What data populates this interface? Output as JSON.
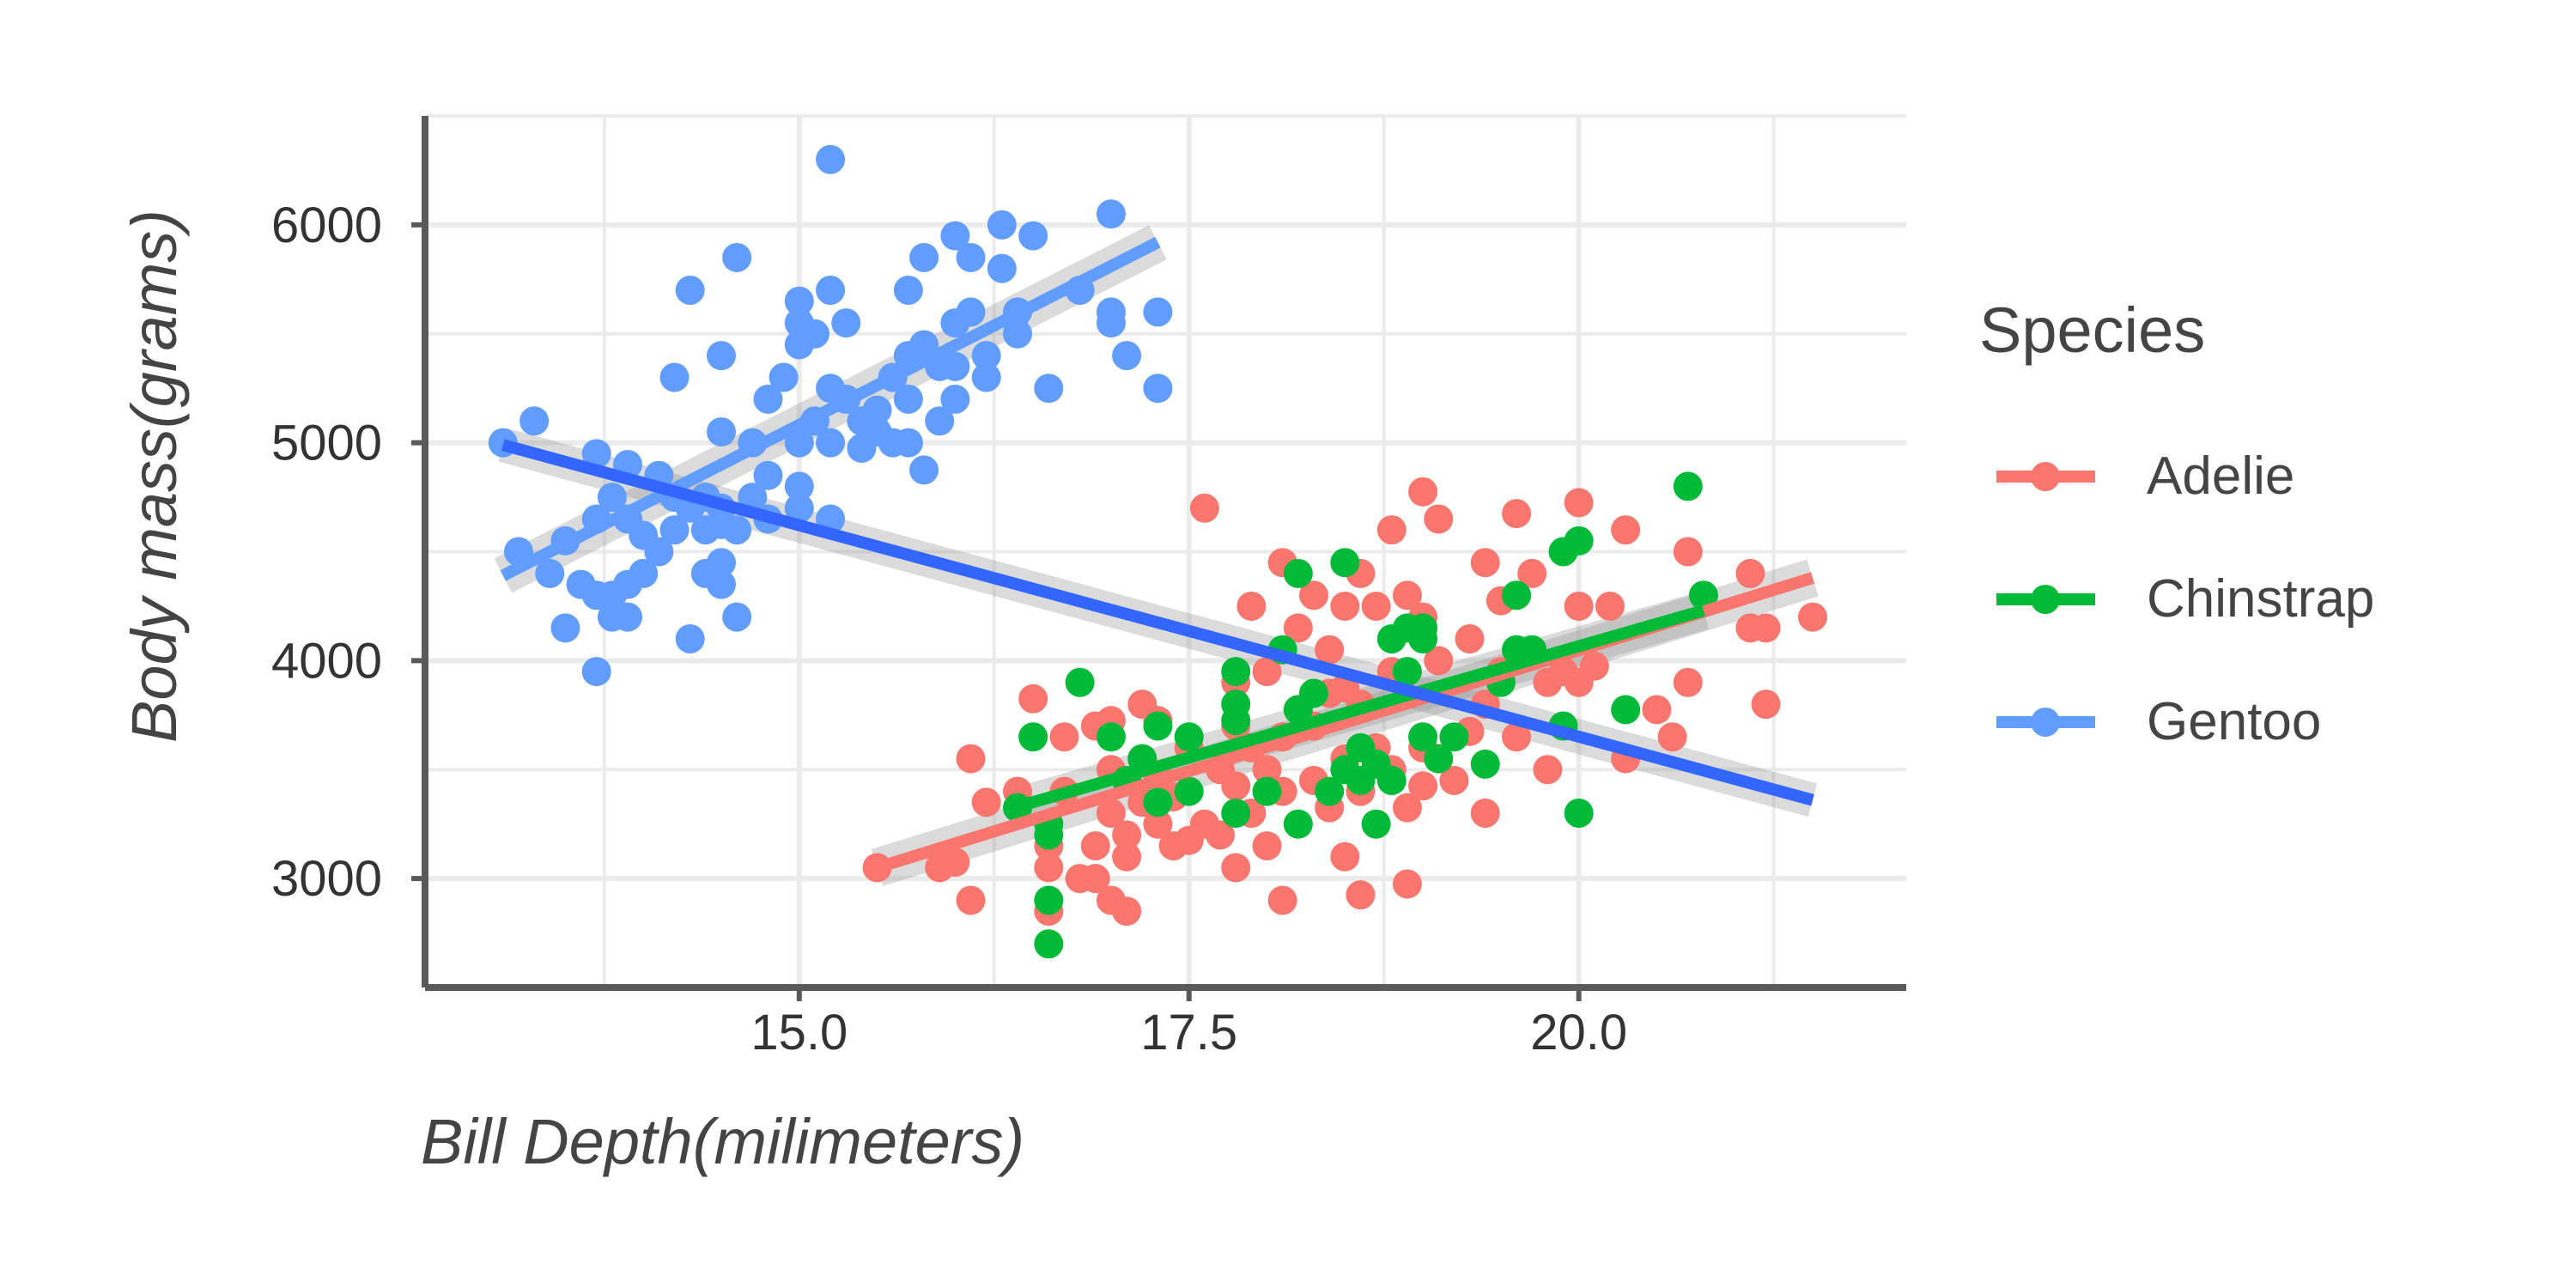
{
  "chart_data": {
    "type": "scatter",
    "title": "",
    "xlabel": "Bill Depth(milimeters)",
    "ylabel": "Body mass(grams)",
    "xlim": [
      12.6,
      22.1
    ],
    "ylim": [
      2500,
      6500
    ],
    "x_ticks": [
      15.0,
      17.5,
      20.0
    ],
    "x_tick_labels": [
      "15.0",
      "17.5",
      "20.0"
    ],
    "y_ticks": [
      3000,
      4000,
      5000,
      6000
    ],
    "y_tick_labels": [
      "3000",
      "4000",
      "5000",
      "6000"
    ],
    "grid": true,
    "legend": {
      "title": "Species",
      "position": "right"
    },
    "overall_fit": {
      "color": "#3366FF",
      "points": [
        [
          13.1,
          4990
        ],
        [
          21.5,
          3360
        ]
      ]
    },
    "series": [
      {
        "name": "Adelie",
        "color": "#F8766D",
        "fit": [
          [
            15.5,
            3050
          ],
          [
            21.5,
            4380
          ]
        ],
        "points": [
          [
            15.5,
            3050
          ],
          [
            15.9,
            3050
          ],
          [
            16.0,
            3075
          ],
          [
            16.1,
            3550
          ],
          [
            16.1,
            2900
          ],
          [
            16.2,
            3350
          ],
          [
            16.4,
            3400
          ],
          [
            16.5,
            3825
          ],
          [
            16.6,
            3150
          ],
          [
            16.6,
            2850
          ],
          [
            16.6,
            3050
          ],
          [
            16.7,
            3400
          ],
          [
            16.7,
            3650
          ],
          [
            16.8,
            3000
          ],
          [
            16.9,
            3000
          ],
          [
            16.9,
            3150
          ],
          [
            16.9,
            3700
          ],
          [
            17.0,
            3300
          ],
          [
            17.0,
            3500
          ],
          [
            17.0,
            3725
          ],
          [
            17.0,
            2900
          ],
          [
            17.1,
            3100
          ],
          [
            17.1,
            3450
          ],
          [
            17.1,
            3200
          ],
          [
            17.1,
            2850
          ],
          [
            17.2,
            3350
          ],
          [
            17.2,
            3550
          ],
          [
            17.2,
            3800
          ],
          [
            17.3,
            3250
          ],
          [
            17.3,
            3475
          ],
          [
            17.3,
            3725
          ],
          [
            17.4,
            3150
          ],
          [
            17.4,
            3375
          ],
          [
            17.5,
            3175
          ],
          [
            17.5,
            3600
          ],
          [
            17.6,
            3250
          ],
          [
            17.6,
            4700
          ],
          [
            17.7,
            3200
          ],
          [
            17.7,
            3500
          ],
          [
            17.8,
            3425
          ],
          [
            17.8,
            3050
          ],
          [
            17.8,
            3700
          ],
          [
            17.8,
            3900
          ],
          [
            17.9,
            3300
          ],
          [
            17.9,
            4250
          ],
          [
            17.9,
            3600
          ],
          [
            18.0,
            3150
          ],
          [
            18.0,
            3500
          ],
          [
            18.0,
            3950
          ],
          [
            18.1,
            2900
          ],
          [
            18.1,
            3400
          ],
          [
            18.1,
            3650
          ],
          [
            18.1,
            4450
          ],
          [
            18.2,
            3775
          ],
          [
            18.2,
            4150
          ],
          [
            18.3,
            3450
          ],
          [
            18.3,
            3700
          ],
          [
            18.3,
            4300
          ],
          [
            18.4,
            3325
          ],
          [
            18.4,
            3850
          ],
          [
            18.4,
            4050
          ],
          [
            18.5,
            3100
          ],
          [
            18.5,
            3550
          ],
          [
            18.5,
            3875
          ],
          [
            18.5,
            4250
          ],
          [
            18.6,
            2925
          ],
          [
            18.6,
            3400
          ],
          [
            18.6,
            3800
          ],
          [
            18.6,
            4400
          ],
          [
            18.7,
            3600
          ],
          [
            18.7,
            4250
          ],
          [
            18.8,
            3500
          ],
          [
            18.8,
            3950
          ],
          [
            18.8,
            4600
          ],
          [
            18.9,
            2975
          ],
          [
            18.9,
            3325
          ],
          [
            18.9,
            4300
          ],
          [
            19.0,
            3425
          ],
          [
            19.0,
            3600
          ],
          [
            19.0,
            4200
          ],
          [
            19.0,
            4775
          ],
          [
            19.1,
            3550
          ],
          [
            19.1,
            4000
          ],
          [
            19.1,
            4650
          ],
          [
            19.2,
            3450
          ],
          [
            19.3,
            3675
          ],
          [
            19.3,
            4100
          ],
          [
            19.4,
            3300
          ],
          [
            19.4,
            3800
          ],
          [
            19.4,
            4450
          ],
          [
            19.5,
            3950
          ],
          [
            19.5,
            4275
          ],
          [
            19.6,
            3650
          ],
          [
            19.6,
            4675
          ],
          [
            19.7,
            4400
          ],
          [
            19.8,
            3500
          ],
          [
            19.8,
            3900
          ],
          [
            19.9,
            3950
          ],
          [
            20.0,
            3900
          ],
          [
            20.0,
            4250
          ],
          [
            20.0,
            4725
          ],
          [
            20.1,
            3975
          ],
          [
            20.2,
            4250
          ],
          [
            20.3,
            3550
          ],
          [
            20.3,
            4600
          ],
          [
            20.5,
            3775
          ],
          [
            20.6,
            3650
          ],
          [
            20.7,
            3900
          ],
          [
            20.7,
            4500
          ],
          [
            21.1,
            4400
          ],
          [
            21.1,
            4150
          ],
          [
            21.2,
            3800
          ],
          [
            21.2,
            4150
          ],
          [
            21.5,
            4200
          ]
        ]
      },
      {
        "name": "Chinstrap",
        "color": "#00BA38",
        "fit": [
          [
            16.4,
            3330
          ],
          [
            20.8,
            4230
          ]
        ],
        "points": [
          [
            16.4,
            3325
          ],
          [
            16.5,
            3650
          ],
          [
            16.6,
            2700
          ],
          [
            16.6,
            2900
          ],
          [
            16.6,
            3200
          ],
          [
            16.6,
            3250
          ],
          [
            16.8,
            3900
          ],
          [
            17.0,
            3650
          ],
          [
            17.1,
            3450
          ],
          [
            17.2,
            3550
          ],
          [
            17.3,
            3350
          ],
          [
            17.3,
            3700
          ],
          [
            17.5,
            3400
          ],
          [
            17.5,
            3650
          ],
          [
            17.8,
            3300
          ],
          [
            17.8,
            3725
          ],
          [
            17.8,
            3800
          ],
          [
            17.8,
            3950
          ],
          [
            18.0,
            3400
          ],
          [
            18.1,
            4050
          ],
          [
            18.2,
            3250
          ],
          [
            18.2,
            3775
          ],
          [
            18.2,
            4400
          ],
          [
            18.3,
            3850
          ],
          [
            18.4,
            3400
          ],
          [
            18.5,
            3500
          ],
          [
            18.5,
            4450
          ],
          [
            18.6,
            3450
          ],
          [
            18.6,
            3600
          ],
          [
            18.7,
            3250
          ],
          [
            18.7,
            3525
          ],
          [
            18.8,
            3450
          ],
          [
            18.8,
            4100
          ],
          [
            18.9,
            3950
          ],
          [
            18.9,
            4150
          ],
          [
            19.0,
            3650
          ],
          [
            19.0,
            4100
          ],
          [
            19.0,
            4150
          ],
          [
            19.1,
            3550
          ],
          [
            19.2,
            3650
          ],
          [
            19.4,
            3525
          ],
          [
            19.5,
            3900
          ],
          [
            19.6,
            4050
          ],
          [
            19.6,
            4300
          ],
          [
            19.7,
            4050
          ],
          [
            19.9,
            3700
          ],
          [
            19.9,
            4500
          ],
          [
            20.0,
            4550
          ],
          [
            20.0,
            3300
          ],
          [
            20.3,
            3775
          ],
          [
            20.7,
            4800
          ],
          [
            20.8,
            4300
          ]
        ]
      },
      {
        "name": "Gentoo",
        "color": "#619CFF",
        "fit": [
          [
            13.1,
            4390
          ],
          [
            17.3,
            5920
          ]
        ],
        "points": [
          [
            13.1,
            5000
          ],
          [
            13.2,
            4500
          ],
          [
            13.3,
            5100
          ],
          [
            13.4,
            4400
          ],
          [
            13.5,
            4150
          ],
          [
            13.5,
            4550
          ],
          [
            13.6,
            4350
          ],
          [
            13.7,
            3950
          ],
          [
            13.7,
            4300
          ],
          [
            13.7,
            4650
          ],
          [
            13.7,
            4950
          ],
          [
            13.8,
            4200
          ],
          [
            13.8,
            4750
          ],
          [
            13.8,
            4300
          ],
          [
            13.9,
            4200
          ],
          [
            13.9,
            4350
          ],
          [
            13.9,
            4650
          ],
          [
            13.9,
            4900
          ],
          [
            14.0,
            4575
          ],
          [
            14.0,
            4400
          ],
          [
            14.1,
            4850
          ],
          [
            14.1,
            4500
          ],
          [
            14.2,
            4600
          ],
          [
            14.2,
            4750
          ],
          [
            14.2,
            5300
          ],
          [
            14.3,
            4100
          ],
          [
            14.3,
            4700
          ],
          [
            14.3,
            5700
          ],
          [
            14.4,
            4400
          ],
          [
            14.4,
            4600
          ],
          [
            14.4,
            4750
          ],
          [
            14.5,
            4350
          ],
          [
            14.5,
            4450
          ],
          [
            14.5,
            4625
          ],
          [
            14.5,
            4700
          ],
          [
            14.5,
            5050
          ],
          [
            14.5,
            5400
          ],
          [
            14.6,
            4200
          ],
          [
            14.6,
            4600
          ],
          [
            14.6,
            5850
          ],
          [
            14.7,
            4750
          ],
          [
            14.7,
            5000
          ],
          [
            14.8,
            4650
          ],
          [
            14.8,
            4850
          ],
          [
            14.8,
            5200
          ],
          [
            14.9,
            5300
          ],
          [
            15.0,
            4700
          ],
          [
            15.0,
            4800
          ],
          [
            15.0,
            5000
          ],
          [
            15.0,
            5450
          ],
          [
            15.0,
            5550
          ],
          [
            15.0,
            5650
          ],
          [
            15.1,
            5500
          ],
          [
            15.1,
            5100
          ],
          [
            15.2,
            4650
          ],
          [
            15.2,
            5000
          ],
          [
            15.2,
            5250
          ],
          [
            15.2,
            5700
          ],
          [
            15.2,
            6300
          ],
          [
            15.3,
            5200
          ],
          [
            15.3,
            5550
          ],
          [
            15.4,
            4975
          ],
          [
            15.4,
            5100
          ],
          [
            15.5,
            5150
          ],
          [
            15.5,
            5050
          ],
          [
            15.6,
            5000
          ],
          [
            15.6,
            5300
          ],
          [
            15.7,
            5000
          ],
          [
            15.7,
            5200
          ],
          [
            15.7,
            5400
          ],
          [
            15.7,
            5700
          ],
          [
            15.8,
            4875
          ],
          [
            15.8,
            5450
          ],
          [
            15.8,
            5850
          ],
          [
            15.9,
            5100
          ],
          [
            15.9,
            5350
          ],
          [
            16.0,
            5200
          ],
          [
            16.0,
            5350
          ],
          [
            16.0,
            5550
          ],
          [
            16.0,
            5950
          ],
          [
            16.1,
            5850
          ],
          [
            16.1,
            5600
          ],
          [
            16.2,
            5300
          ],
          [
            16.2,
            5400
          ],
          [
            16.3,
            5800
          ],
          [
            16.3,
            6000
          ],
          [
            16.4,
            5500
          ],
          [
            16.4,
            5600
          ],
          [
            16.5,
            5950
          ],
          [
            16.6,
            5250
          ],
          [
            16.8,
            5700
          ],
          [
            17.0,
            5550
          ],
          [
            17.0,
            5600
          ],
          [
            17.0,
            6050
          ],
          [
            17.1,
            5400
          ],
          [
            17.3,
            5600
          ],
          [
            17.3,
            5250
          ]
        ]
      }
    ]
  }
}
